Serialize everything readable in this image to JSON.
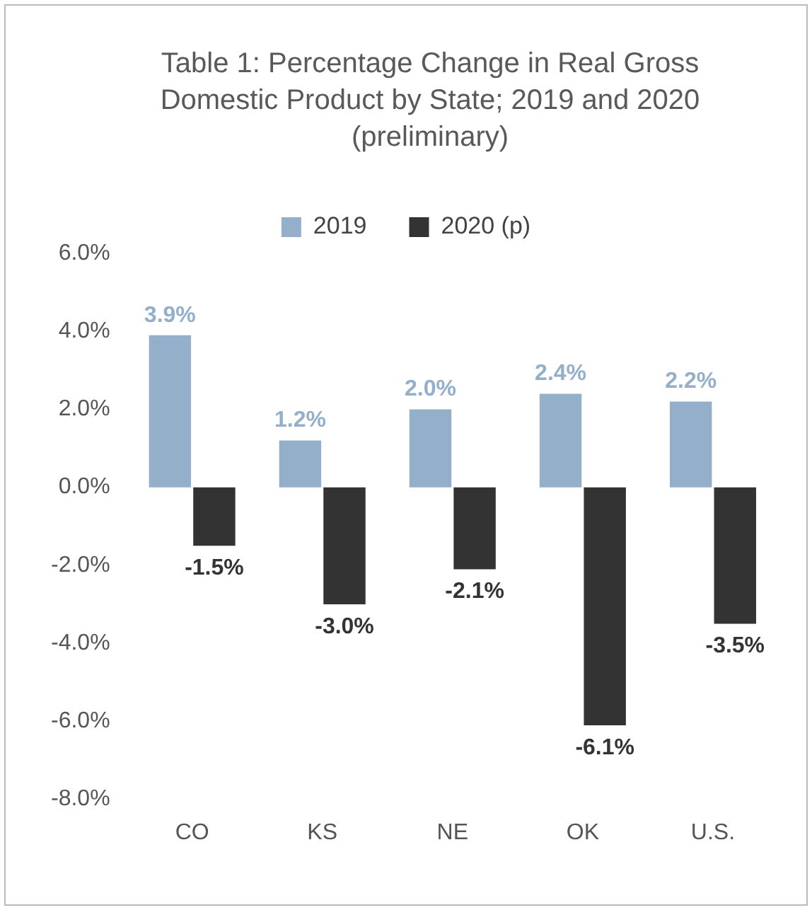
{
  "chart_data": {
    "type": "bar",
    "title": "Table 1: Percentage Change in Real Gross Domestic Product by State; 2019 and 2020 (preliminary)",
    "categories": [
      "CO",
      "KS",
      "NE",
      "OK",
      "U.S."
    ],
    "series": [
      {
        "name": "2019",
        "color": "#93afc9",
        "values": [
          3.9,
          1.2,
          2.0,
          2.4,
          2.2
        ],
        "value_labels": [
          "3.9%",
          "1.2%",
          "2.0%",
          "2.4%",
          "2.2%"
        ]
      },
      {
        "name": "2020 (p)",
        "color": "#333333",
        "values": [
          -1.5,
          -3.0,
          -2.1,
          -6.1,
          -3.5
        ],
        "value_labels": [
          "-1.5%",
          "-3.0%",
          "-2.1%",
          "-6.1%",
          "-3.5%"
        ]
      }
    ],
    "ylim": [
      -8,
      6
    ],
    "yticks": [
      {
        "value": -8,
        "label": "-8.0%"
      },
      {
        "value": -6,
        "label": "-6.0%"
      },
      {
        "value": -4,
        "label": "-4.0%"
      },
      {
        "value": -2,
        "label": "-2.0%"
      },
      {
        "value": 0,
        "label": "0.0%"
      },
      {
        "value": 2,
        "label": "2.0%"
      },
      {
        "value": 4,
        "label": "4.0%"
      },
      {
        "value": 6,
        "label": "6.0%"
      }
    ],
    "grid": false,
    "legend": "top"
  }
}
